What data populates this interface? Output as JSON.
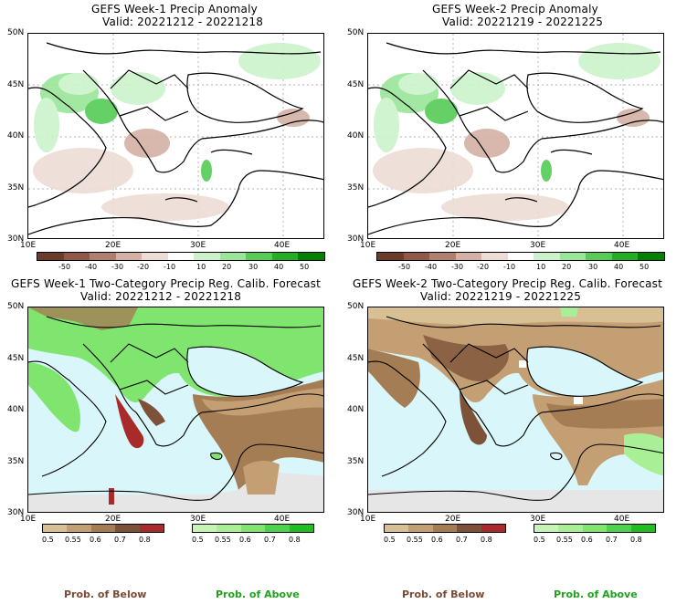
{
  "panels": [
    {
      "title": "GEFS Week-1 Precip Anomaly",
      "valid": "Valid: 20221212 - 20221218",
      "lat_labels": [
        "50N",
        "45N",
        "40N",
        "35N",
        "30N"
      ],
      "lon_labels": [
        "10E",
        "20E",
        "30E",
        "40E"
      ],
      "colorbar_labels": [
        "-50",
        "-40",
        "-30",
        "-20",
        "-10",
        "10",
        "20",
        "30",
        "40",
        "50"
      ]
    },
    {
      "title": "GEFS Week-2 Precip Anomaly",
      "valid": "Valid: 20221219 - 20221225",
      "lat_labels": [
        "50N",
        "45N",
        "40N",
        "35N",
        "30N"
      ],
      "lon_labels": [
        "10E",
        "20E",
        "30E",
        "40E"
      ],
      "colorbar_labels": [
        "-50",
        "-40",
        "-30",
        "-20",
        "-10",
        "10",
        "20",
        "30",
        "40",
        "50"
      ]
    },
    {
      "title": "GEFS Week-1 Two-Category Precip Reg. Calib. Forecast",
      "valid": "Valid: 20221212 - 20221218",
      "lat_labels": [
        "50N",
        "45N",
        "40N",
        "35N",
        "30N"
      ],
      "lon_labels": [
        "10E",
        "20E",
        "30E",
        "40E"
      ],
      "below_labels": [
        "0.5",
        "0.55",
        "0.6",
        "0.7",
        "0.8"
      ],
      "above_labels": [
        "0.5",
        "0.55",
        "0.6",
        "0.7",
        "0.8"
      ]
    },
    {
      "title": "GEFS Week-2 Two-Category Precip Reg. Calib. Forecast",
      "valid": "Valid: 20221219 - 20221225",
      "lat_labels": [
        "50N",
        "45N",
        "40N",
        "35N",
        "30N"
      ],
      "lon_labels": [
        "10E",
        "20E",
        "30E",
        "40E"
      ],
      "below_labels": [
        "0.5",
        "0.55",
        "0.6",
        "0.7",
        "0.8"
      ],
      "above_labels": [
        "0.5",
        "0.55",
        "0.6",
        "0.7",
        "0.8"
      ]
    }
  ],
  "legend": {
    "below_text": "Prob. of Below",
    "above_text": "Prob. of Above"
  },
  "colors": {
    "anomaly_scale": [
      "#6b3b2c",
      "#8f5848",
      "#b07f6e",
      "#d4b1a4",
      "#eddcd4",
      "#ffffff",
      "#ccf2cc",
      "#99e699",
      "#55cc55",
      "#22b022",
      "#008000"
    ],
    "below_scale": [
      "#d8bf94",
      "#c49f73",
      "#a57d55",
      "#7d5238",
      "#a92a2a"
    ],
    "above_scale": [
      "#c7f5b5",
      "#a8ef96",
      "#7fe56e",
      "#4cd34c",
      "#1fbf1f"
    ],
    "sea": "#d9f7fa",
    "land_dry": "#e6e6e6",
    "below_text_color": "#7a4a36",
    "above_text_color": "#1fa31f"
  }
}
